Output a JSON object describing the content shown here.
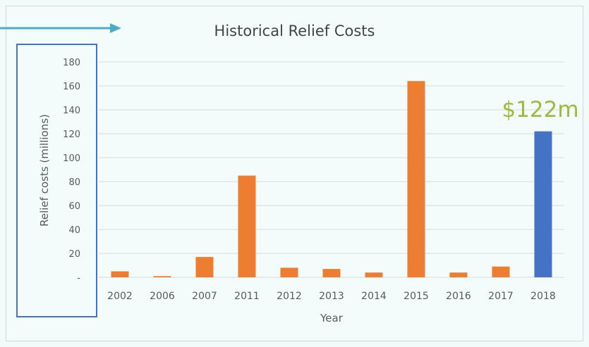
{
  "chart_data": {
    "type": "bar",
    "title": "Historical Relief Costs",
    "xlabel": "Year",
    "ylabel": "Relief costs (millions)",
    "categories": [
      "2002",
      "2006",
      "2007",
      "2011",
      "2012",
      "2013",
      "2014",
      "2015",
      "2016",
      "2017",
      "2018"
    ],
    "values": [
      5,
      1,
      17,
      85,
      8,
      7,
      4,
      164,
      4,
      9,
      122
    ],
    "ylim": [
      0,
      180
    ],
    "yticks": [
      0,
      20,
      40,
      60,
      80,
      100,
      120,
      140,
      160,
      180
    ],
    "ytick_labels": [
      "-",
      "20",
      "40",
      "60",
      "80",
      "100",
      "120",
      "140",
      "160",
      "180"
    ],
    "grid": true,
    "colors": {
      "default_bar": "#ed7d31",
      "highlight_bar": "#4472c4",
      "annotation": "#9bbb3b",
      "arrow": "#4bacc6",
      "highlight_box": "#4472c4"
    },
    "highlight_category": "2018",
    "annotations": [
      {
        "category": "2018",
        "text": "$122m"
      }
    ]
  }
}
